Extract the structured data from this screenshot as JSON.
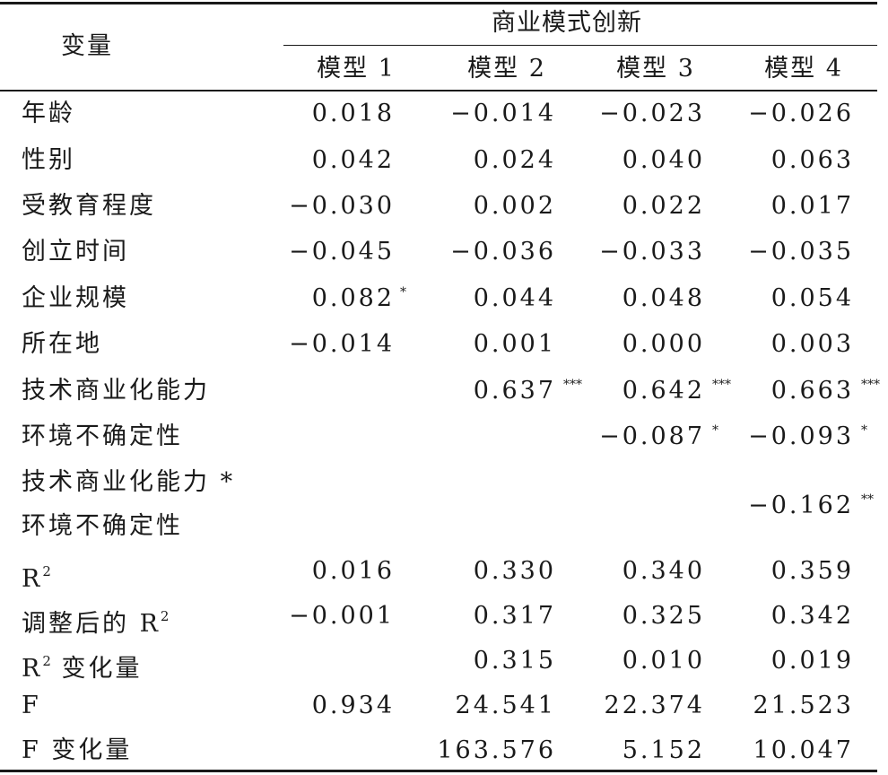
{
  "table": {
    "variable_header": "变量",
    "group_header": "商业模式创新",
    "models": [
      "模型 1",
      "模型 2",
      "模型 3",
      "模型 4"
    ],
    "rows": [
      {
        "label": "年龄",
        "values": [
          "0.018",
          "−0.014",
          "−0.023",
          "−0.026"
        ],
        "sig": [
          "",
          "",
          "",
          ""
        ]
      },
      {
        "label": "性别",
        "values": [
          "0.042",
          "0.024",
          "0.040",
          "0.063"
        ],
        "sig": [
          "",
          "",
          "",
          ""
        ]
      },
      {
        "label": "受教育程度",
        "values": [
          "−0.030",
          "0.002",
          "0.022",
          "0.017"
        ],
        "sig": [
          "",
          "",
          "",
          ""
        ]
      },
      {
        "label": "创立时间",
        "values": [
          "−0.045",
          "−0.036",
          "−0.033",
          "−0.035"
        ],
        "sig": [
          "",
          "",
          "",
          ""
        ]
      },
      {
        "label": "企业规模",
        "values": [
          "0.082",
          "0.044",
          "0.048",
          "0.054"
        ],
        "sig": [
          "*",
          "",
          "",
          ""
        ]
      },
      {
        "label": "所在地",
        "values": [
          "−0.014",
          "0.001",
          "0.000",
          "0.003"
        ],
        "sig": [
          "",
          "",
          "",
          ""
        ]
      },
      {
        "label": "技术商业化能力",
        "values": [
          "",
          "0.637",
          "0.642",
          "0.663"
        ],
        "sig": [
          "",
          "***",
          "***",
          "***"
        ]
      },
      {
        "label": "环境不确定性",
        "values": [
          "",
          "",
          "−0.087",
          "−0.093"
        ],
        "sig": [
          "",
          "",
          "*",
          "*"
        ]
      },
      {
        "label": "技术商业化能力 *",
        "label2": "环境不确定性",
        "values": [
          "",
          "",
          "",
          "−0.162"
        ],
        "sig": [
          "",
          "",
          "",
          "**"
        ]
      },
      {
        "label": "R",
        "label_sup": "2",
        "label_suffix": "",
        "values": [
          "0.016",
          "0.330",
          "0.340",
          "0.359"
        ],
        "sig": [
          "",
          "",
          "",
          ""
        ]
      },
      {
        "label": "调整后的 R",
        "label_sup": "2",
        "label_suffix": "",
        "values": [
          "−0.001",
          "0.317",
          "0.325",
          "0.342"
        ],
        "sig": [
          "",
          "",
          "",
          ""
        ]
      },
      {
        "label": "R",
        "label_sup": "2",
        "label_suffix": " 变化量",
        "values": [
          "",
          "0.315",
          "0.010",
          "0.019"
        ],
        "sig": [
          "",
          "",
          "",
          ""
        ]
      },
      {
        "label": "F",
        "values": [
          "0.934",
          "24.541",
          "22.374",
          "21.523"
        ],
        "sig": [
          "",
          "",
          "",
          ""
        ]
      },
      {
        "label": "F 变化量",
        "values": [
          "",
          "163.576",
          "5.152",
          "10.047"
        ],
        "sig": [
          "",
          "",
          "",
          ""
        ]
      }
    ]
  }
}
